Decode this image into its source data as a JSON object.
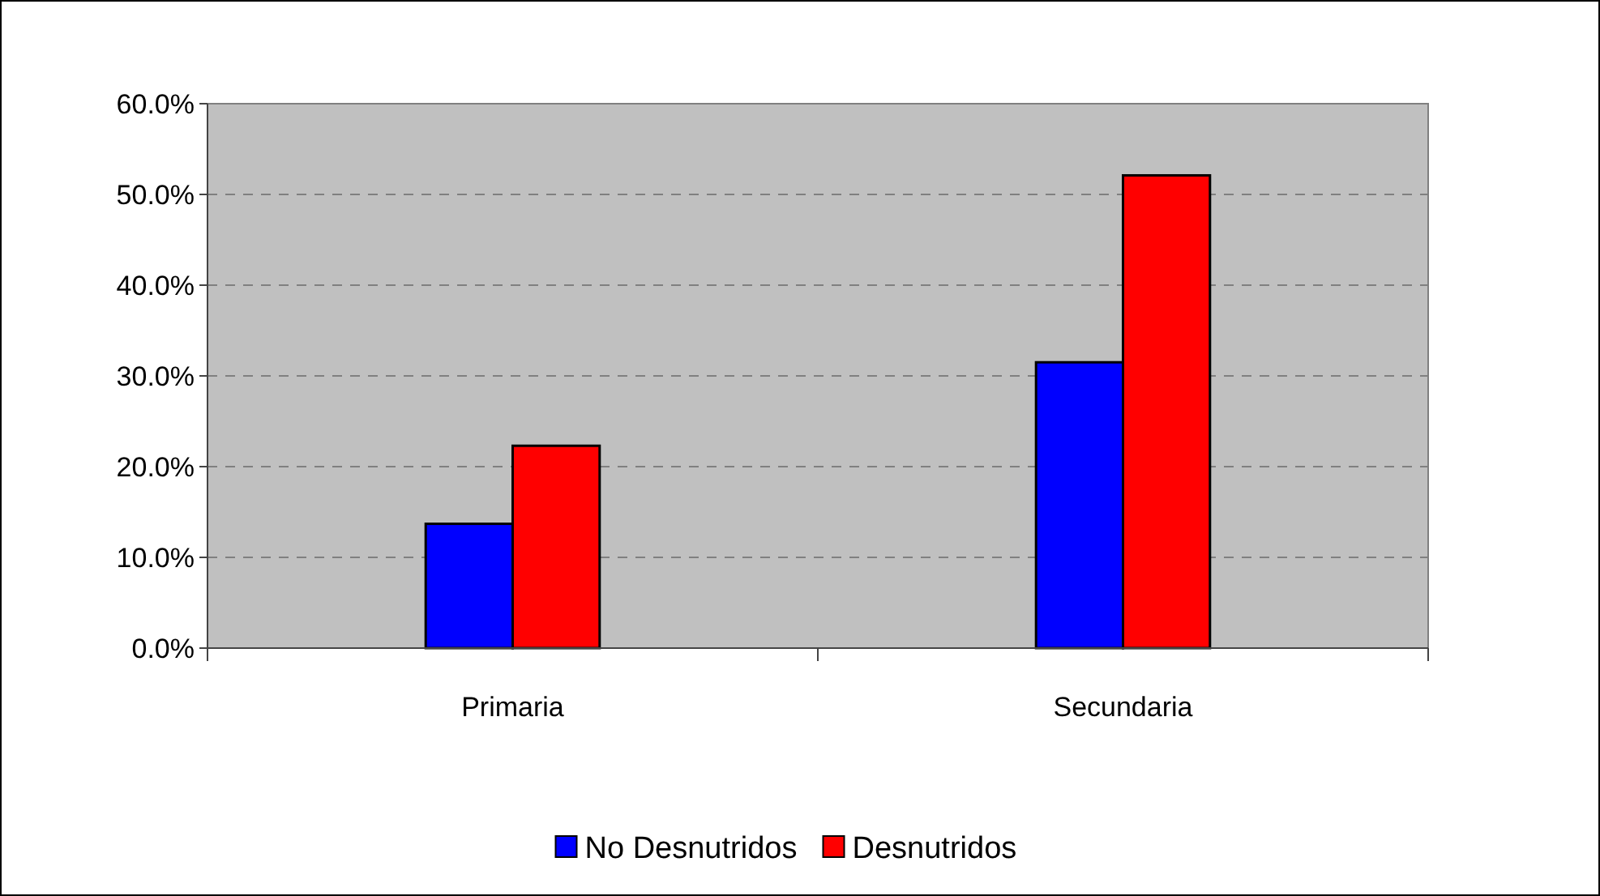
{
  "chart_data": {
    "type": "bar",
    "categories": [
      "Primaria",
      "Secundaria"
    ],
    "series": [
      {
        "name": "No Desnutridos",
        "color": "#0000ff",
        "values": [
          13.7,
          31.5
        ]
      },
      {
        "name": "Desnutridos",
        "color": "#ff0000",
        "values": [
          22.3,
          52.1
        ]
      }
    ],
    "ylim": [
      0,
      60
    ],
    "yticks": [
      {
        "value": 0,
        "label": "0.0%"
      },
      {
        "value": 10,
        "label": "10.0%"
      },
      {
        "value": 20,
        "label": "20.0%"
      },
      {
        "value": 30,
        "label": "30.0%"
      },
      {
        "value": 40,
        "label": "40.0%"
      },
      {
        "value": 50,
        "label": "50.0%"
      },
      {
        "value": 60,
        "label": "60.0%"
      }
    ],
    "grid": "y",
    "legend": "bottom"
  }
}
